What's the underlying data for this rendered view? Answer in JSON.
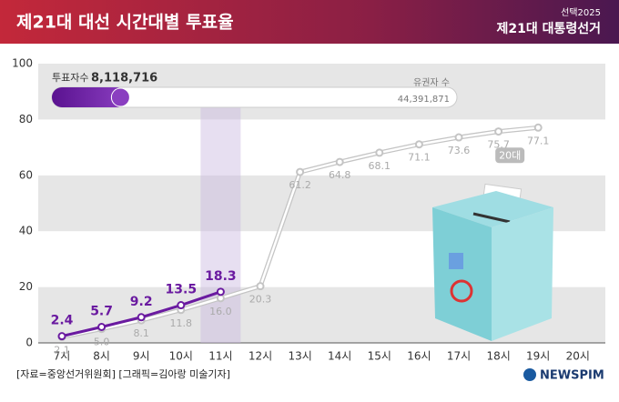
{
  "header": {
    "title": "제21대 대선 시간대별 투표율",
    "badge_top": "선택2025",
    "badge_main": "제21대 대통령선거"
  },
  "chart_data": {
    "type": "line",
    "categories": [
      "7시",
      "8시",
      "9시",
      "10시",
      "11시",
      "12시",
      "13시",
      "14시",
      "15시",
      "16시",
      "17시",
      "18시",
      "19시",
      "20시"
    ],
    "series": [
      {
        "color": "#6a1aa0",
        "values": [
          2.4,
          5.7,
          9.2,
          13.5,
          18.3,
          null,
          null,
          null,
          null,
          null,
          null,
          null,
          null,
          null
        ]
      },
      {
        "name": "20대",
        "color": "#c4c4c4",
        "values": [
          2.1,
          5.0,
          8.1,
          11.8,
          16.0,
          20.3,
          61.2,
          64.8,
          68.1,
          71.1,
          73.6,
          75.7,
          77.1,
          null
        ],
        "value_labels": [
          "2.1",
          "5.0",
          "8.1",
          "11.8",
          "16.0",
          "20.3",
          "61.2",
          "64.8",
          "68.1",
          "71.1",
          "73.6",
          "75.7",
          "77.1",
          null
        ]
      }
    ],
    "ylim": [
      0,
      100
    ],
    "yticks": [
      0,
      20,
      40,
      60,
      80,
      100
    ],
    "grid": true,
    "turnout": {
      "voters_text": "투표자수",
      "voters": 8118716,
      "voters_label": "8,118,716",
      "electorate_text": "유권자 수",
      "electorate": 44391871,
      "electorate_label": "44,391,871"
    }
  },
  "footer": {
    "source": "[자료=중앙선거위원회] [그래픽=김아랑 미술기자]",
    "brand": "NEWSPIM"
  }
}
